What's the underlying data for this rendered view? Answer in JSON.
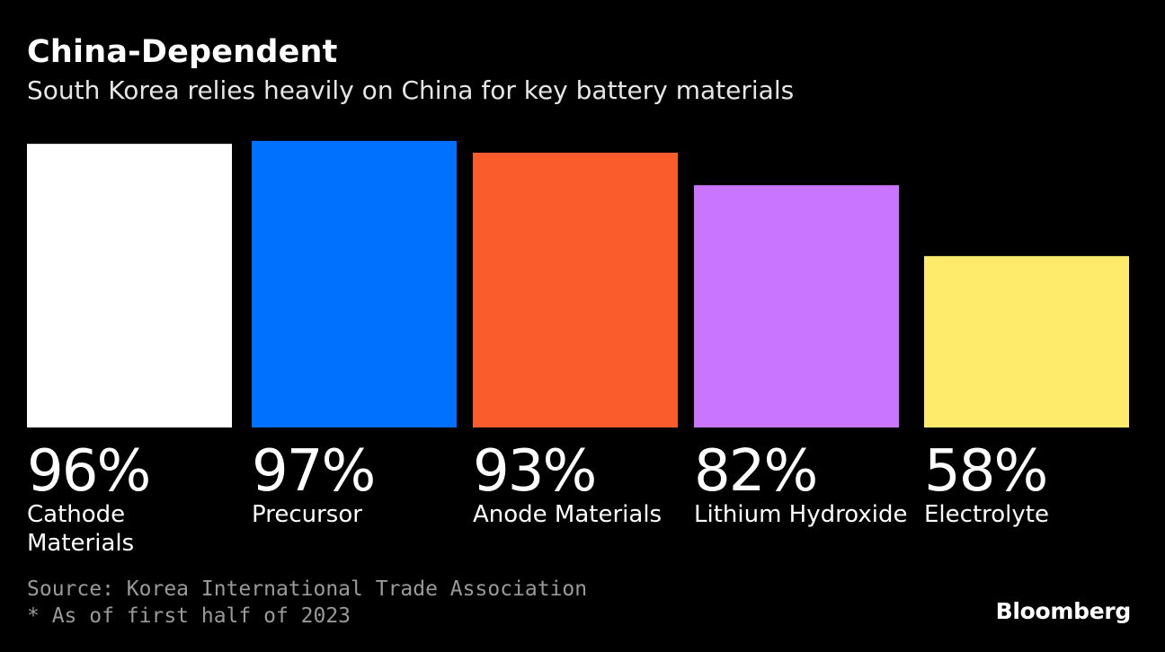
{
  "header": {
    "title": "China-Dependent",
    "subtitle": "South Korea relies heavily on China for key battery materials"
  },
  "chart_data": {
    "type": "bar",
    "title": "China-Dependent",
    "subtitle": "South Korea relies heavily on China for key battery materials",
    "categories": [
      "Cathode Materials",
      "Precursor",
      "Anode Materials",
      "Lithium Hydroxide",
      "Electrolyte"
    ],
    "values": [
      96,
      97,
      93,
      82,
      58
    ],
    "value_labels": [
      "96%",
      "97%",
      "93%",
      "82%",
      "58%"
    ],
    "category_labels": [
      [
        "Cathode",
        "Materials"
      ],
      [
        "Precursor"
      ],
      [
        "Anode Materials"
      ],
      [
        "Lithium Hydroxide"
      ],
      [
        "Electrolyte"
      ]
    ],
    "colors": [
      "#ffffff",
      "#0070ff",
      "#fa5c2b",
      "#c975ff",
      "#ffeb6b"
    ],
    "unit": "%",
    "ylim": [
      0,
      100
    ],
    "xlabel": "",
    "ylabel": "",
    "grid": false,
    "legend": "none"
  },
  "footer": {
    "source": "Source: Korea International Trade Association",
    "note": "* As of first half of 2023",
    "brand": "Bloomberg"
  }
}
